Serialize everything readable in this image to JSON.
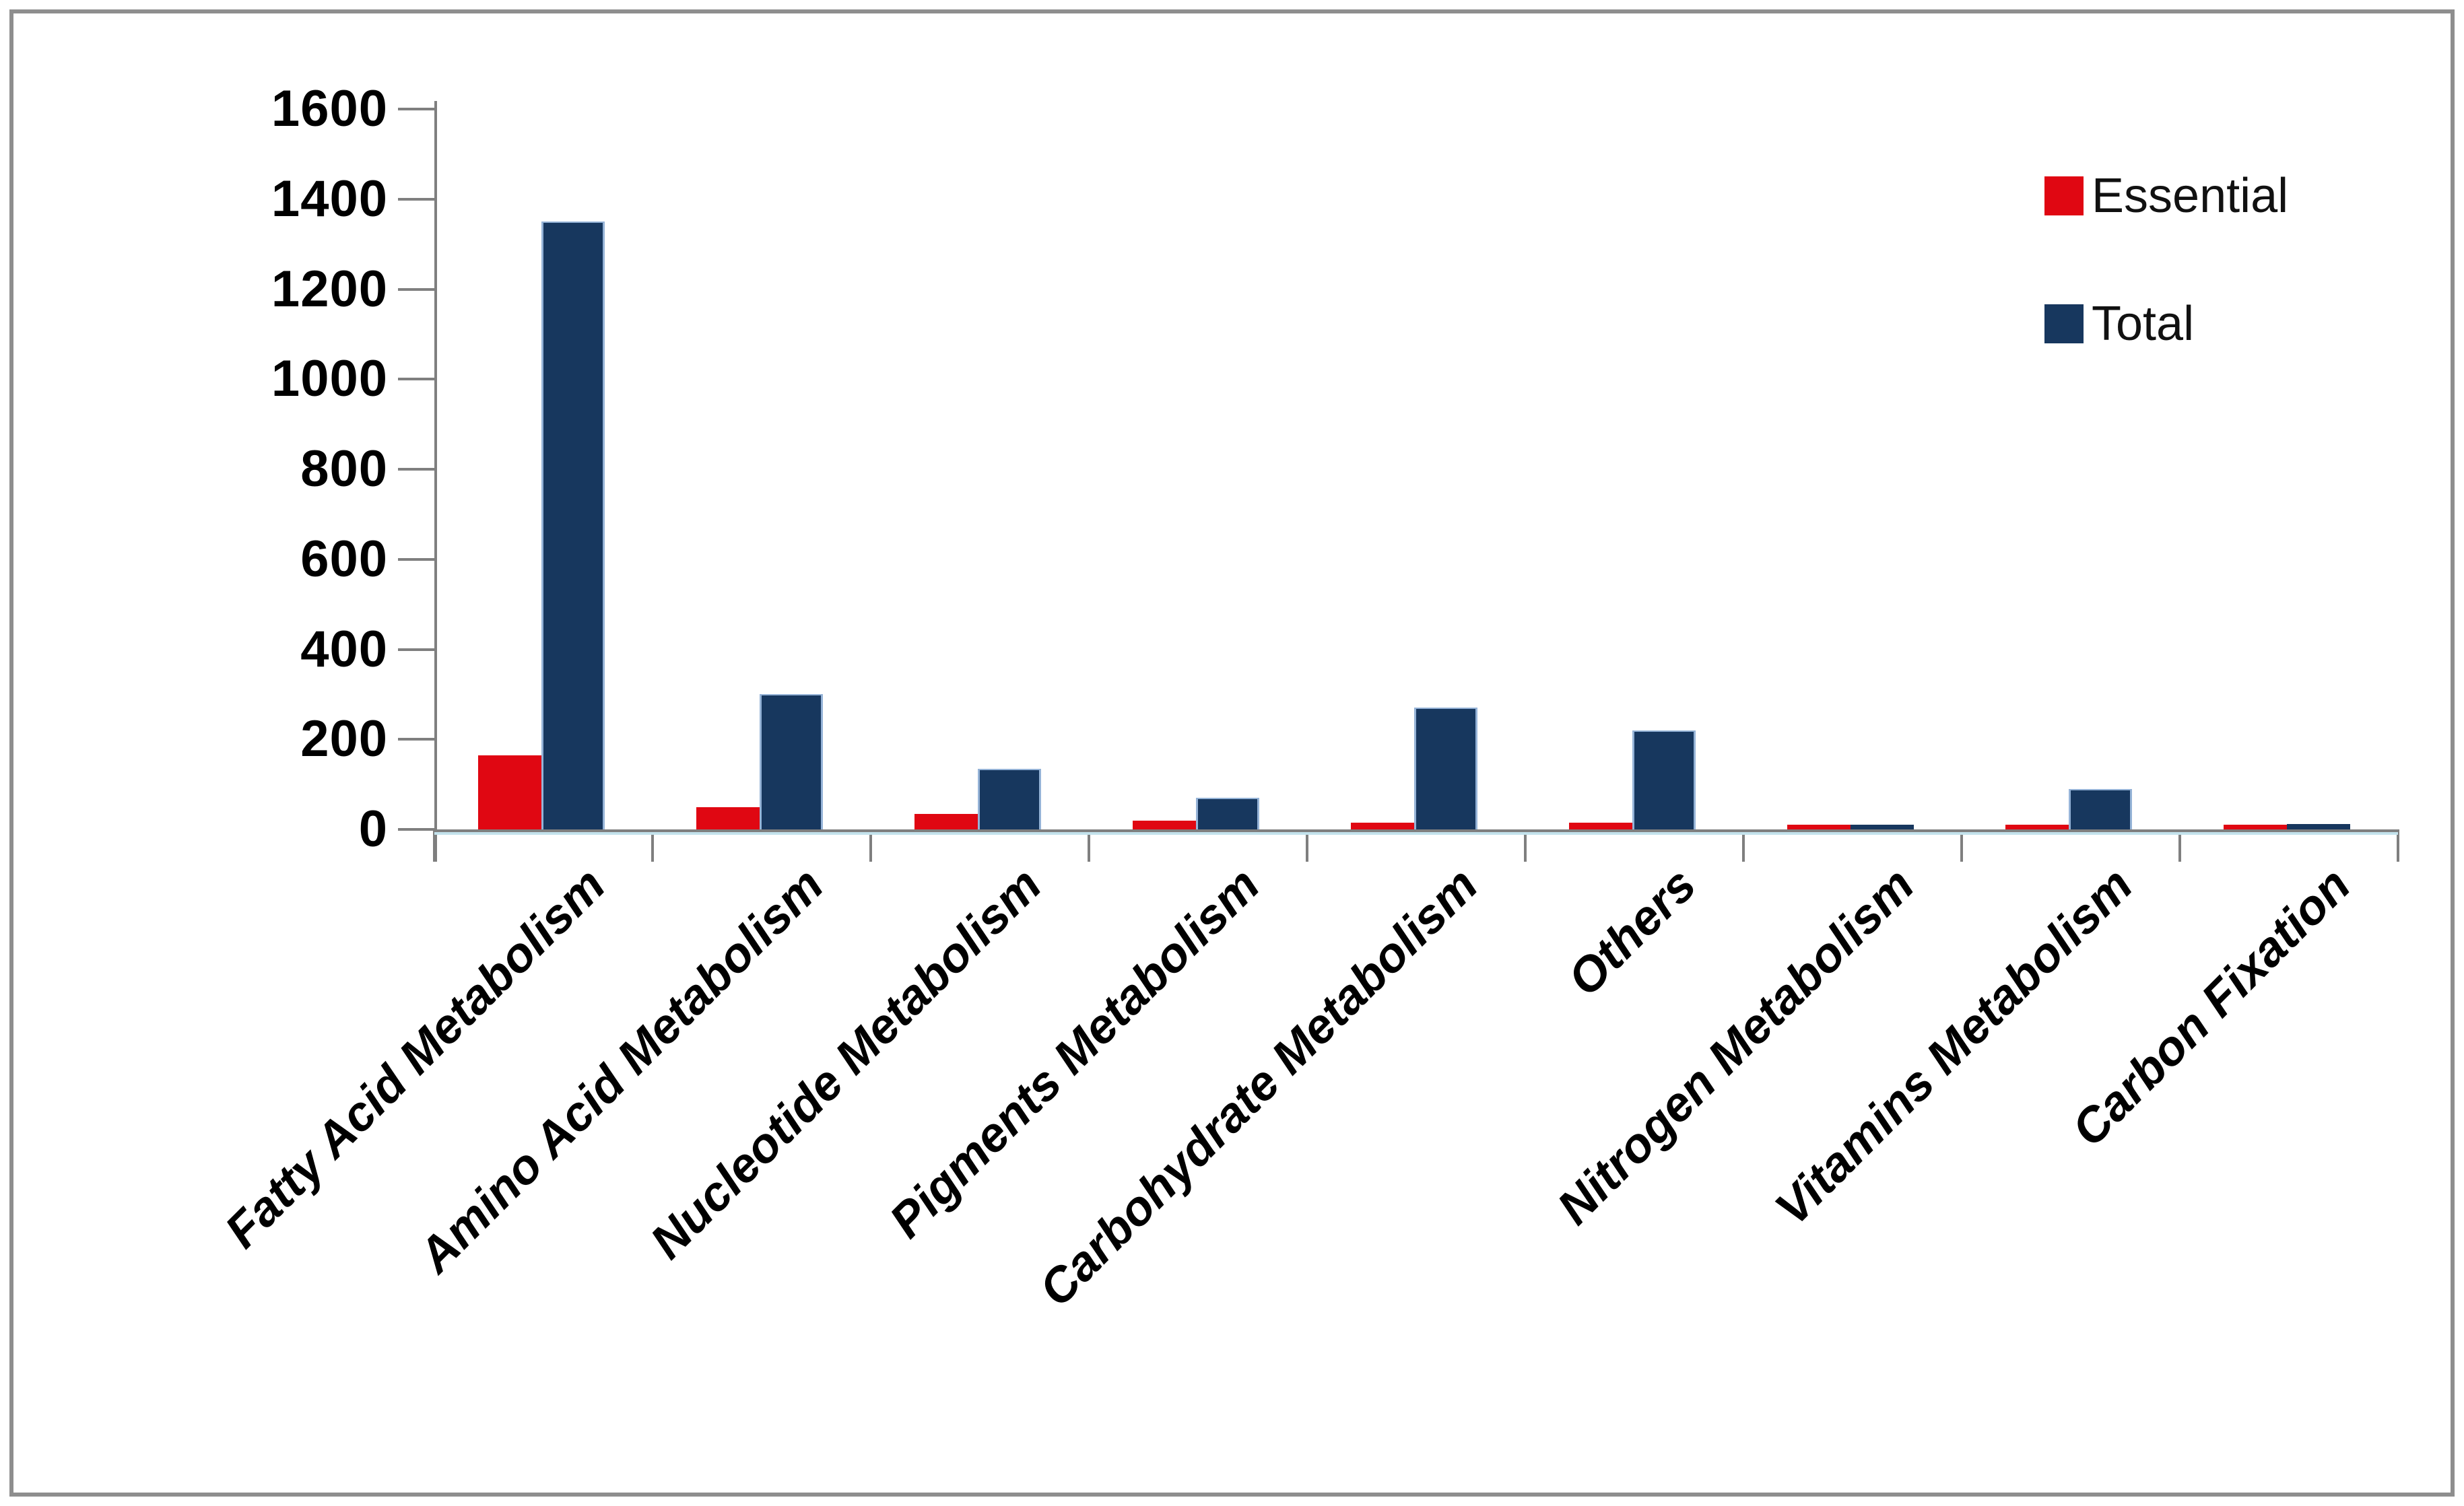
{
  "figure": {
    "background": "#ffffff",
    "border_color": "#8e8e8e"
  },
  "chart_data": {
    "type": "bar",
    "title": "",
    "xlabel": "",
    "ylabel": "",
    "categories": [
      "Fatty Acid Metabolism",
      "Amino Acid Metabolism",
      "Nucleotide Metabolism",
      "Pigments Metabolism",
      "Carbohydrate Metabolism",
      "Others",
      "Nitrogen Metabolism",
      "Vitamins Metabolism",
      "Carbon Fixation"
    ],
    "series": [
      {
        "name": "Essential",
        "color": "#e00712",
        "values": [
          165,
          50,
          35,
          20,
          15,
          15,
          10,
          10,
          10
        ]
      },
      {
        "name": "Total",
        "color": "#17375e",
        "values": [
          1350,
          300,
          135,
          70,
          270,
          220,
          10,
          90,
          12
        ]
      }
    ],
    "ylim": [
      0,
      1600
    ],
    "ytick_interval": 200,
    "ytick_labels": [
      "0",
      "200",
      "400",
      "600",
      "800",
      "1000",
      "1200",
      "1400",
      "1600"
    ],
    "grid": false,
    "legend_position": "top-right",
    "axis_color": "#7f7f7f",
    "bar_edge_color": "#95b3d7",
    "category_label_rotation_deg": -45
  }
}
